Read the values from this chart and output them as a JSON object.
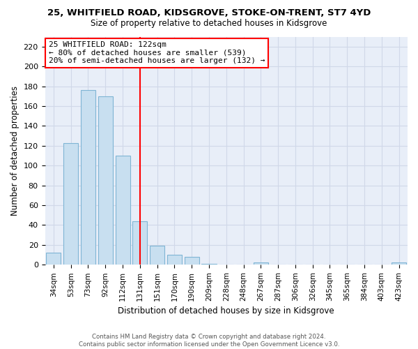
{
  "title": "25, WHITFIELD ROAD, KIDSGROVE, STOKE-ON-TRENT, ST7 4YD",
  "subtitle": "Size of property relative to detached houses in Kidsgrove",
  "xlabel": "Distribution of detached houses by size in Kidsgrove",
  "ylabel": "Number of detached properties",
  "bar_labels": [
    "34sqm",
    "53sqm",
    "73sqm",
    "92sqm",
    "112sqm",
    "131sqm",
    "151sqm",
    "170sqm",
    "190sqm",
    "209sqm",
    "228sqm",
    "248sqm",
    "267sqm",
    "287sqm",
    "306sqm",
    "326sqm",
    "345sqm",
    "365sqm",
    "384sqm",
    "403sqm",
    "423sqm"
  ],
  "bar_values": [
    12,
    123,
    176,
    170,
    110,
    44,
    19,
    10,
    8,
    1,
    0,
    0,
    2,
    0,
    0,
    0,
    0,
    0,
    0,
    0,
    2
  ],
  "bar_color": "#c8dff0",
  "bar_edge_color": "#7fb5d4",
  "vline_x": 5.0,
  "vline_color": "red",
  "ylim": [
    0,
    230
  ],
  "yticks": [
    0,
    20,
    40,
    60,
    80,
    100,
    120,
    140,
    160,
    180,
    200,
    220
  ],
  "annotation_title": "25 WHITFIELD ROAD: 122sqm",
  "annotation_line1": "← 80% of detached houses are smaller (539)",
  "annotation_line2": "20% of semi-detached houses are larger (132) →",
  "annotation_box_color": "white",
  "annotation_box_edge": "red",
  "footer1": "Contains HM Land Registry data © Crown copyright and database right 2024.",
  "footer2": "Contains public sector information licensed under the Open Government Licence v3.0.",
  "grid_color": "#d0d8e8",
  "bg_color": "#e8eef8"
}
